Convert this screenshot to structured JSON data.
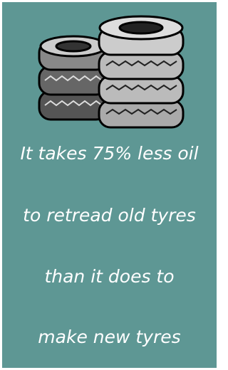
{
  "message": {
    "lines": [
      "It takes 75% less oil",
      "to retread old tyres",
      "than it does to",
      "make new tyres"
    ]
  }
}
